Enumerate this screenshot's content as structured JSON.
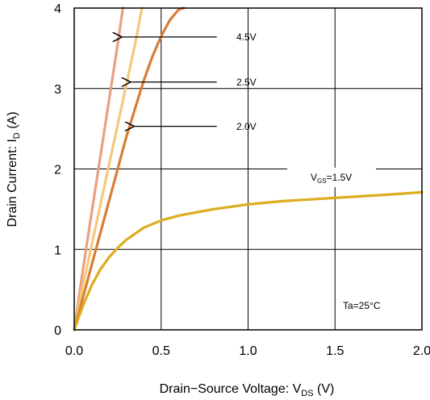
{
  "chart_data": {
    "type": "line",
    "xlabel": {
      "main": "Drain−Source Voltage: V",
      "sub": "DS",
      "unit": " (V)"
    },
    "ylabel": {
      "main": "Drain Current: I",
      "sub": "D",
      "unit": " (A)"
    },
    "xlim": [
      0,
      2.0
    ],
    "ylim": [
      0,
      4
    ],
    "x_ticks": [
      "0.0",
      "0.5",
      "1.0",
      "1.5",
      "2.0"
    ],
    "y_ticks": [
      "0",
      "1",
      "2",
      "3",
      "4"
    ],
    "grid": true,
    "series": [
      {
        "name": "4.5V",
        "color": "#e8a080",
        "x": [
          0,
          0.05,
          0.1,
          0.15,
          0.2,
          0.25,
          0.28
        ],
        "y": [
          0,
          0.75,
          1.45,
          2.15,
          2.85,
          3.55,
          4.0
        ]
      },
      {
        "name": "2.5V",
        "color": "#f5c97a",
        "x": [
          0,
          0.05,
          0.1,
          0.15,
          0.2,
          0.25,
          0.3,
          0.35,
          0.39
        ],
        "y": [
          0,
          0.55,
          1.05,
          1.55,
          2.05,
          2.55,
          3.05,
          3.55,
          4.0
        ]
      },
      {
        "name": "2.0V",
        "color": "#d97d36",
        "x": [
          0,
          0.05,
          0.1,
          0.15,
          0.2,
          0.25,
          0.3,
          0.35,
          0.4,
          0.45,
          0.5,
          0.55,
          0.6,
          0.63
        ],
        "y": [
          0,
          0.4,
          0.8,
          1.2,
          1.6,
          2.0,
          2.4,
          2.75,
          3.1,
          3.4,
          3.65,
          3.85,
          3.98,
          4.0
        ]
      },
      {
        "name": "VGS=1.5V",
        "color": "#dbad1f",
        "x": [
          0,
          0.05,
          0.1,
          0.15,
          0.2,
          0.25,
          0.3,
          0.4,
          0.5,
          0.6,
          0.8,
          1.0,
          1.2,
          1.5,
          1.8,
          2.0
        ],
        "y": [
          0,
          0.3,
          0.55,
          0.75,
          0.9,
          1.02,
          1.12,
          1.27,
          1.36,
          1.42,
          1.5,
          1.56,
          1.6,
          1.64,
          1.68,
          1.71
        ]
      }
    ],
    "annotations": {
      "label_4_5": "4.5V",
      "label_2_5": "2.5V",
      "label_2_0": "2.0V",
      "vgs_main": "V",
      "vgs_sub": "GS",
      "vgs_value": "=1.5V",
      "temp": "Ta=25°C"
    },
    "arrows": [
      {
        "target": "4.5V",
        "x_from": 0.82,
        "x_to": 0.27,
        "y": 3.64
      },
      {
        "target": "2.5V",
        "x_from": 0.82,
        "x_to": 0.32,
        "y": 3.08
      },
      {
        "target": "2.0V",
        "x_from": 0.82,
        "x_to": 0.34,
        "y": 2.53
      }
    ]
  }
}
